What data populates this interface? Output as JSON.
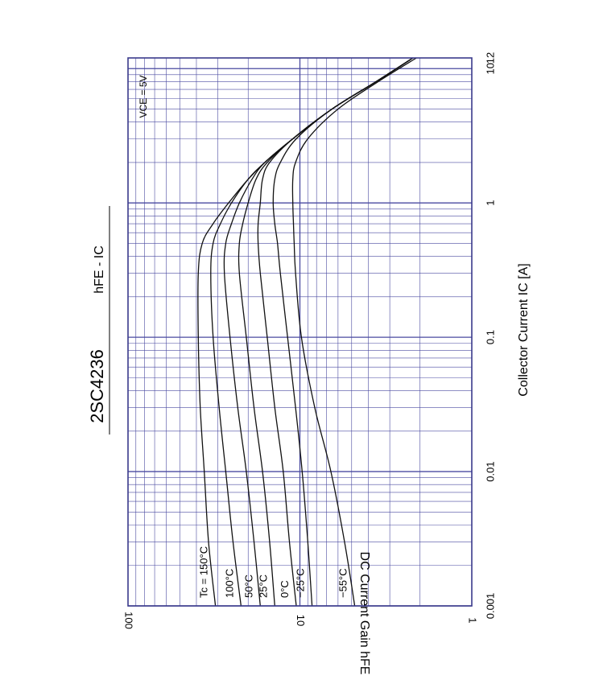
{
  "chart_data": {
    "type": "line",
    "title": "2SC4236",
    "subtitle": "hFE - IC",
    "xlabel": "Collector Current  IC  [A]",
    "ylabel": "DC Current Gain  hFE",
    "x_scale": "log",
    "y_scale": "log",
    "xlim": [
      0.001,
      12
    ],
    "ylim": [
      1,
      100
    ],
    "x_ticks": [
      {
        "value": 0.001,
        "label": "0.001"
      },
      {
        "value": 0.01,
        "label": "0.01"
      },
      {
        "value": 0.1,
        "label": "0.1"
      },
      {
        "value": 1,
        "label": "1"
      },
      {
        "value": 10,
        "label": "10"
      },
      {
        "value": 12,
        "label": "12"
      }
    ],
    "y_ticks": [
      {
        "value": 1,
        "label": "1"
      },
      {
        "value": 10,
        "label": "10"
      },
      {
        "value": 100,
        "label": "100"
      }
    ],
    "grid": true,
    "condition": "VCE = 5V",
    "series": [
      {
        "name": "Tc = 150°C",
        "x": [
          0.001,
          0.003,
          0.01,
          0.03,
          0.1,
          0.3,
          0.5,
          0.7,
          1,
          1.5,
          2,
          3,
          5,
          8,
          12
        ],
        "y": [
          31,
          34,
          36,
          38,
          39,
          39,
          37,
          32,
          26,
          20,
          16,
          11,
          6.5,
          3.6,
          2.2
        ]
      },
      {
        "name": "100°C",
        "x": [
          0.001,
          0.003,
          0.01,
          0.03,
          0.1,
          0.3,
          0.5,
          0.7,
          1,
          1.5,
          2,
          3,
          5,
          8,
          12
        ],
        "y": [
          22,
          24.5,
          27,
          29.5,
          32,
          33,
          32,
          29,
          25,
          20,
          16,
          11,
          6.5,
          3.6,
          2.2
        ]
      },
      {
        "name": "50°C",
        "x": [
          0.001,
          0.003,
          0.01,
          0.03,
          0.1,
          0.3,
          0.5,
          0.7,
          1,
          1.5,
          2,
          3,
          5,
          8,
          12
        ],
        "y": [
          17,
          18.5,
          20.5,
          23,
          25.5,
          27.5,
          27,
          25,
          22.5,
          19,
          16,
          11,
          6.5,
          3.6,
          2.2
        ]
      },
      {
        "name": "25°C",
        "x": [
          0.001,
          0.003,
          0.01,
          0.03,
          0.1,
          0.3,
          0.5,
          0.7,
          1,
          1.5,
          2,
          3,
          5,
          8,
          12
        ],
        "y": [
          14,
          15,
          16.5,
          18.5,
          20.5,
          22.5,
          22.5,
          21.5,
          20,
          18,
          15.5,
          11,
          6.5,
          3.6,
          2.2
        ]
      },
      {
        "name": "0°C",
        "x": [
          0.001,
          0.003,
          0.01,
          0.03,
          0.1,
          0.3,
          0.5,
          0.7,
          1,
          1.5,
          2,
          3,
          5,
          8,
          12
        ],
        "y": [
          10.5,
          11.5,
          12.5,
          14,
          15.5,
          17,
          17.5,
          17.5,
          17,
          16.5,
          15,
          11,
          6.5,
          3.6,
          2.2
        ]
      },
      {
        "name": "−25°C",
        "x": [
          0.001,
          0.003,
          0.01,
          0.03,
          0.1,
          0.3,
          0.5,
          0.7,
          1,
          1.5,
          2,
          3,
          5,
          8,
          12
        ],
        "y": [
          8.5,
          9,
          9.7,
          10.6,
          11.8,
          13,
          13.5,
          14,
          14.3,
          14,
          13,
          10.5,
          6.5,
          3.6,
          2.2
        ]
      },
      {
        "name": "−55°C",
        "x": [
          0.001,
          0.003,
          0.01,
          0.03,
          0.1,
          0.3,
          0.5,
          0.7,
          1,
          1.5,
          2,
          3,
          5,
          8,
          12
        ],
        "y": [
          4.8,
          5.5,
          6.6,
          8.2,
          9.8,
          10.6,
          10.8,
          10.9,
          11,
          11,
          10.6,
          9,
          6,
          3.5,
          2.1
        ]
      }
    ]
  }
}
